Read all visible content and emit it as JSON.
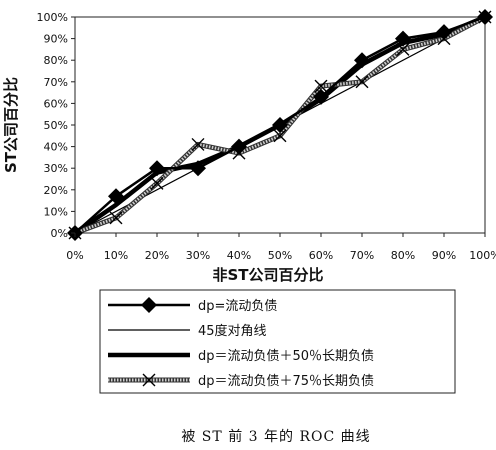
{
  "chart_data": {
    "type": "line",
    "title": "",
    "xlabel": "非ST公司百分比",
    "ylabel": "ST公司百分比",
    "xlim": [
      0,
      100
    ],
    "ylim": [
      0,
      100
    ],
    "x_ticks": [
      "0%",
      "10%",
      "20%",
      "30%",
      "40%",
      "50%",
      "60%",
      "70%",
      "80%",
      "90%",
      "100%"
    ],
    "y_ticks": [
      "0%",
      "10%",
      "20%",
      "30%",
      "40%",
      "50%",
      "60%",
      "70%",
      "80%",
      "90%",
      "100%"
    ],
    "grid": false,
    "legend_position": "bottom",
    "series": [
      {
        "name": "dp=流动负债",
        "style": "diamond",
        "color": "#000000",
        "x": [
          0,
          10,
          20,
          30,
          40,
          50,
          60,
          70,
          80,
          90,
          100
        ],
        "y": [
          0,
          17,
          30,
          30,
          40,
          50,
          63,
          80,
          90,
          93,
          100
        ]
      },
      {
        "name": "45度对角线",
        "style": "thin",
        "color": "#000000",
        "x": [
          0,
          100
        ],
        "y": [
          0,
          100
        ]
      },
      {
        "name": "dp＝流动负债＋50％长期负债",
        "style": "thick",
        "color": "#000000",
        "x": [
          0,
          10,
          20,
          30,
          40,
          50,
          60,
          70,
          80,
          90,
          100
        ],
        "y": [
          0,
          13,
          28,
          32,
          40,
          50,
          62,
          78,
          88,
          92,
          100
        ]
      },
      {
        "name": "dp＝流动负债＋75％长期负债",
        "style": "hatched-x",
        "color": "#555555",
        "x": [
          0,
          10,
          20,
          30,
          40,
          50,
          60,
          70,
          80,
          90,
          100
        ],
        "y": [
          0,
          7,
          23,
          41,
          37,
          45,
          68,
          70,
          85,
          90,
          100
        ]
      }
    ]
  },
  "caption": "被 ST 前 3 年的 ROC 曲线"
}
